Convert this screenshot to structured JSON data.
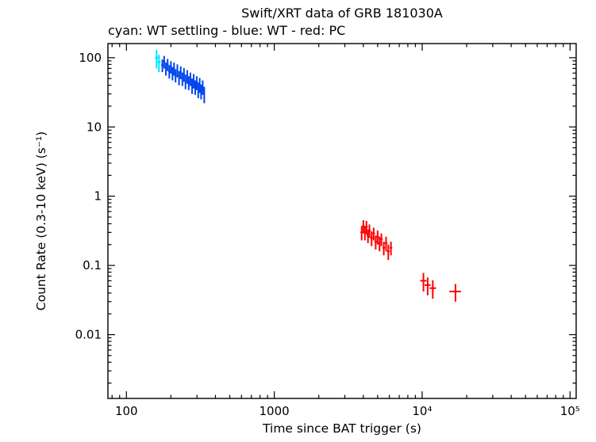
{
  "title": "Swift/XRT data of GRB 181030A",
  "subtitle": "cyan: WT settling - blue: WT - red: PC",
  "chart_data": {
    "type": "scatter",
    "title": "Swift/XRT data of GRB 181030A",
    "subtitle": "cyan: WT settling - blue: WT - red: PC",
    "xlabel": "Time since BAT trigger (s)",
    "ylabel": "Count Rate (0.3-10 keV) (s⁻¹)",
    "xscale": "log",
    "yscale": "log",
    "xlim": [
      75,
      110000
    ],
    "ylim": [
      0.0012,
      160
    ],
    "grid": false,
    "x_ticks": [
      {
        "v": 100,
        "label": "100"
      },
      {
        "v": 1000,
        "label": "1000"
      },
      {
        "v": 10000,
        "label": "10⁴"
      },
      {
        "v": 100000,
        "label": "10⁵"
      }
    ],
    "y_ticks": [
      {
        "v": 100,
        "label": "100"
      },
      {
        "v": 10,
        "label": "10"
      },
      {
        "v": 1,
        "label": "1"
      },
      {
        "v": 0.1,
        "label": "0.1"
      },
      {
        "v": 0.01,
        "label": "0.01"
      }
    ],
    "point_format": [
      "time_s",
      "count_rate",
      "time_err_s",
      "rate_err"
    ],
    "series": [
      {
        "name": "WT settling",
        "color": "#00e5ff",
        "points": [
          [
            160,
            100,
            4,
            30
          ],
          [
            166,
            86,
            4,
            24
          ]
        ]
      },
      {
        "name": "WT",
        "color": "#0044ee",
        "points": [
          [
            175,
            78,
            3,
            16
          ],
          [
            180,
            88,
            3,
            18
          ],
          [
            185,
            70,
            3,
            15
          ],
          [
            190,
            80,
            3,
            16
          ],
          [
            195,
            64,
            3,
            14
          ],
          [
            200,
            74,
            3,
            15
          ],
          [
            205,
            60,
            3,
            13
          ],
          [
            210,
            70,
            3,
            15
          ],
          [
            215,
            56,
            3,
            12
          ],
          [
            221,
            66,
            3,
            14
          ],
          [
            227,
            52,
            3,
            12
          ],
          [
            233,
            62,
            3,
            13
          ],
          [
            239,
            50,
            3,
            11
          ],
          [
            245,
            58,
            3,
            13
          ],
          [
            251,
            46,
            3,
            11
          ],
          [
            258,
            54,
            3,
            12
          ],
          [
            264,
            44,
            3,
            10
          ],
          [
            271,
            50,
            3,
            11
          ],
          [
            278,
            40,
            3,
            10
          ],
          [
            285,
            47,
            3,
            11
          ],
          [
            292,
            38,
            3,
            9
          ],
          [
            299,
            44,
            3,
            10
          ],
          [
            306,
            35,
            3,
            9
          ],
          [
            313,
            41,
            3,
            10
          ],
          [
            320,
            33,
            3,
            8
          ],
          [
            328,
            38,
            3,
            9
          ],
          [
            336,
            30,
            3,
            8
          ]
        ]
      },
      {
        "name": "PC",
        "color": "#ff0000",
        "points": [
          [
            3900,
            0.3,
            80,
            0.07
          ],
          [
            4000,
            0.37,
            80,
            0.08
          ],
          [
            4100,
            0.3,
            80,
            0.07
          ],
          [
            4200,
            0.36,
            85,
            0.08
          ],
          [
            4300,
            0.27,
            85,
            0.06
          ],
          [
            4400,
            0.32,
            90,
            0.07
          ],
          [
            4550,
            0.25,
            95,
            0.06
          ],
          [
            4700,
            0.29,
            95,
            0.06
          ],
          [
            4850,
            0.22,
            100,
            0.05
          ],
          [
            5000,
            0.26,
            100,
            0.06
          ],
          [
            5150,
            0.21,
            105,
            0.05
          ],
          [
            5300,
            0.24,
            110,
            0.05
          ],
          [
            5500,
            0.18,
            115,
            0.04
          ],
          [
            5700,
            0.21,
            120,
            0.05
          ],
          [
            5900,
            0.16,
            125,
            0.04
          ],
          [
            6150,
            0.18,
            130,
            0.04
          ],
          [
            10200,
            0.06,
            500,
            0.018
          ],
          [
            10900,
            0.052,
            500,
            0.015
          ],
          [
            11800,
            0.047,
            600,
            0.014
          ],
          [
            16800,
            0.042,
            1500,
            0.012
          ]
        ]
      }
    ]
  }
}
